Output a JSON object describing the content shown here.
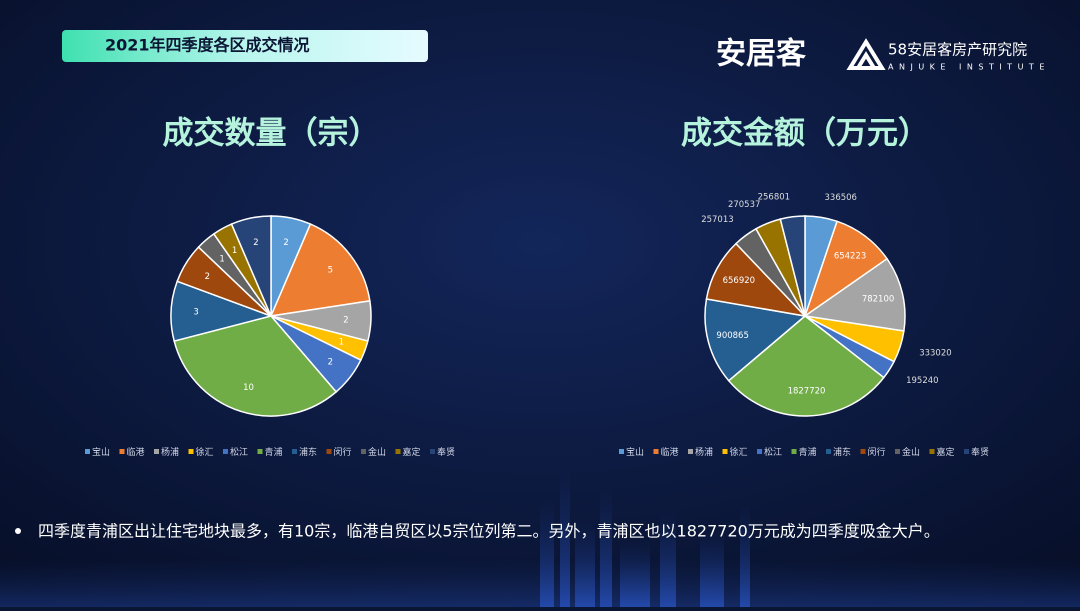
{
  "header": {
    "title": "2021年四季度各区成交情况",
    "brand": "安居客",
    "institute": "58安居客房产研究院",
    "institute_en": "ANJUKE INSTITUTE"
  },
  "note": "四季度青浦区出让住宅地块最多，有10宗，临港自贸区以5宗位列第二。另外，青浦区也以1827720万元成为四季度吸金大户。",
  "chart_data": [
    {
      "type": "pie",
      "title": "成交数量（宗）",
      "categories": [
        "宝山",
        "临港",
        "杨浦",
        "徐汇",
        "松江",
        "青浦",
        "浦东",
        "闵行",
        "金山",
        "嘉定",
        "奉贤"
      ],
      "values": [
        2,
        5,
        2,
        1,
        2,
        10,
        3,
        2,
        1,
        1,
        2
      ],
      "colors": [
        "#5b9bd5",
        "#ed7d31",
        "#a5a5a5",
        "#ffc000",
        "#4472c4",
        "#70ad47",
        "#255e91",
        "#9e480e",
        "#636363",
        "#997300",
        "#264478"
      ],
      "legend": "bottom"
    },
    {
      "type": "pie",
      "title": "成交金额（万元）",
      "categories": [
        "宝山",
        "临港",
        "杨浦",
        "徐汇",
        "松江",
        "青浦",
        "浦东",
        "闵行",
        "金山",
        "嘉定",
        "奉贤"
      ],
      "values": [
        336506,
        654223,
        782100,
        333020,
        195240,
        1827720,
        900865,
        656920,
        257013,
        270537,
        256801
      ],
      "colors": [
        "#5b9bd5",
        "#ed7d31",
        "#a5a5a5",
        "#ffc000",
        "#4472c4",
        "#70ad47",
        "#255e91",
        "#9e480e",
        "#636363",
        "#997300",
        "#264478"
      ],
      "legend": "bottom"
    }
  ]
}
